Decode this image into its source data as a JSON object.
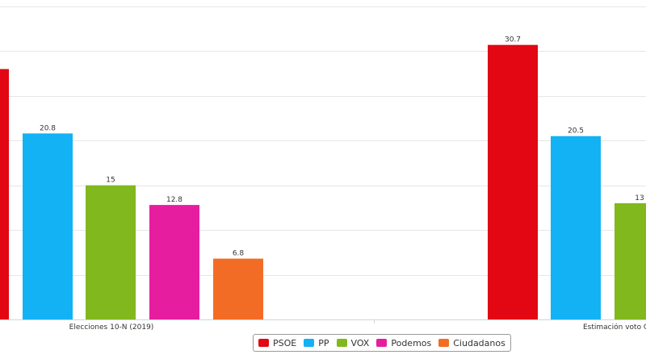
{
  "chart_data": {
    "type": "bar",
    "categories": [
      "Elecciones 10-N (2019)",
      "Estimación voto C"
    ],
    "series": [
      {
        "name": "PSOE",
        "color": "#e30613",
        "values": [
          28,
          30.7
        ]
      },
      {
        "name": "PP",
        "color": "#12b2f5",
        "values": [
          20.8,
          20.5
        ]
      },
      {
        "name": "VOX",
        "color": "#80b81e",
        "values": [
          15,
          13
        ]
      },
      {
        "name": "Podemos",
        "color": "#e61d9e",
        "values": [
          12.8,
          null
        ]
      },
      {
        "name": "Ciudadanos",
        "color": "#f36c26",
        "values": [
          6.8,
          null
        ]
      }
    ],
    "data_labels_shown": [
      [
        false,
        true
      ],
      [
        true,
        true
      ],
      [
        true,
        true
      ],
      [
        true,
        false
      ],
      [
        true,
        false
      ]
    ],
    "ylim": [
      0,
      35
    ],
    "grid": true,
    "legend_position": "bottom-center"
  }
}
